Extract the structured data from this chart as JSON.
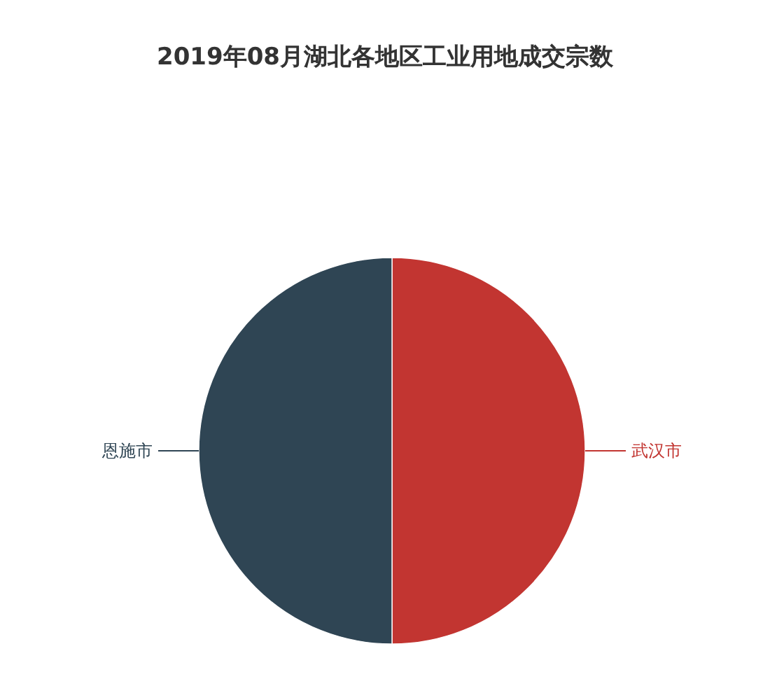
{
  "chart_data": {
    "type": "pie",
    "title": "2019年08月湖北各地区工业用地成交宗数",
    "categories": [
      "武汉市",
      "恩施市"
    ],
    "values": [
      50,
      50
    ],
    "colors": [
      "#c23531",
      "#2f4554"
    ]
  }
}
